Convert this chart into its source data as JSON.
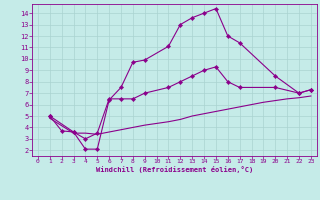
{
  "xlabel": "Windchill (Refroidissement éolien,°C)",
  "bg_color": "#c5ebe8",
  "grid_color": "#aad4d0",
  "line_color": "#8b008b",
  "spine_color": "#8b008b",
  "xlim": [
    -0.5,
    23.5
  ],
  "ylim": [
    1.5,
    14.8
  ],
  "xticks": [
    0,
    1,
    2,
    3,
    4,
    5,
    6,
    7,
    8,
    9,
    10,
    11,
    12,
    13,
    14,
    15,
    16,
    17,
    18,
    19,
    20,
    21,
    22,
    23
  ],
  "yticks": [
    2,
    3,
    4,
    5,
    6,
    7,
    8,
    9,
    10,
    11,
    12,
    13,
    14
  ],
  "series1_x": [
    1,
    2,
    3,
    4,
    5,
    6,
    7,
    8,
    9,
    11,
    12,
    13,
    14,
    15,
    16,
    17,
    20,
    22,
    23
  ],
  "series1_y": [
    5.0,
    3.7,
    3.6,
    2.1,
    2.1,
    6.4,
    7.5,
    9.7,
    9.9,
    11.1,
    13.0,
    13.6,
    14.0,
    14.4,
    12.0,
    11.4,
    8.5,
    7.0,
    7.3
  ],
  "series2_x": [
    1,
    3,
    4,
    5,
    6,
    7,
    8,
    9,
    11,
    12,
    13,
    14,
    15,
    16,
    17,
    20,
    22,
    23
  ],
  "series2_y": [
    5.0,
    3.6,
    3.0,
    3.5,
    6.5,
    6.5,
    6.5,
    7.0,
    7.5,
    8.0,
    8.5,
    9.0,
    9.3,
    8.0,
    7.5,
    7.5,
    7.0,
    7.3
  ],
  "series3_x": [
    1,
    3,
    4,
    5,
    6,
    7,
    8,
    9,
    10,
    11,
    12,
    13,
    14,
    15,
    16,
    17,
    18,
    19,
    20,
    21,
    22,
    23
  ],
  "series3_y": [
    4.8,
    3.5,
    3.5,
    3.4,
    3.6,
    3.8,
    4.0,
    4.2,
    4.35,
    4.5,
    4.7,
    5.0,
    5.2,
    5.4,
    5.6,
    5.8,
    6.0,
    6.2,
    6.35,
    6.5,
    6.6,
    6.75
  ]
}
